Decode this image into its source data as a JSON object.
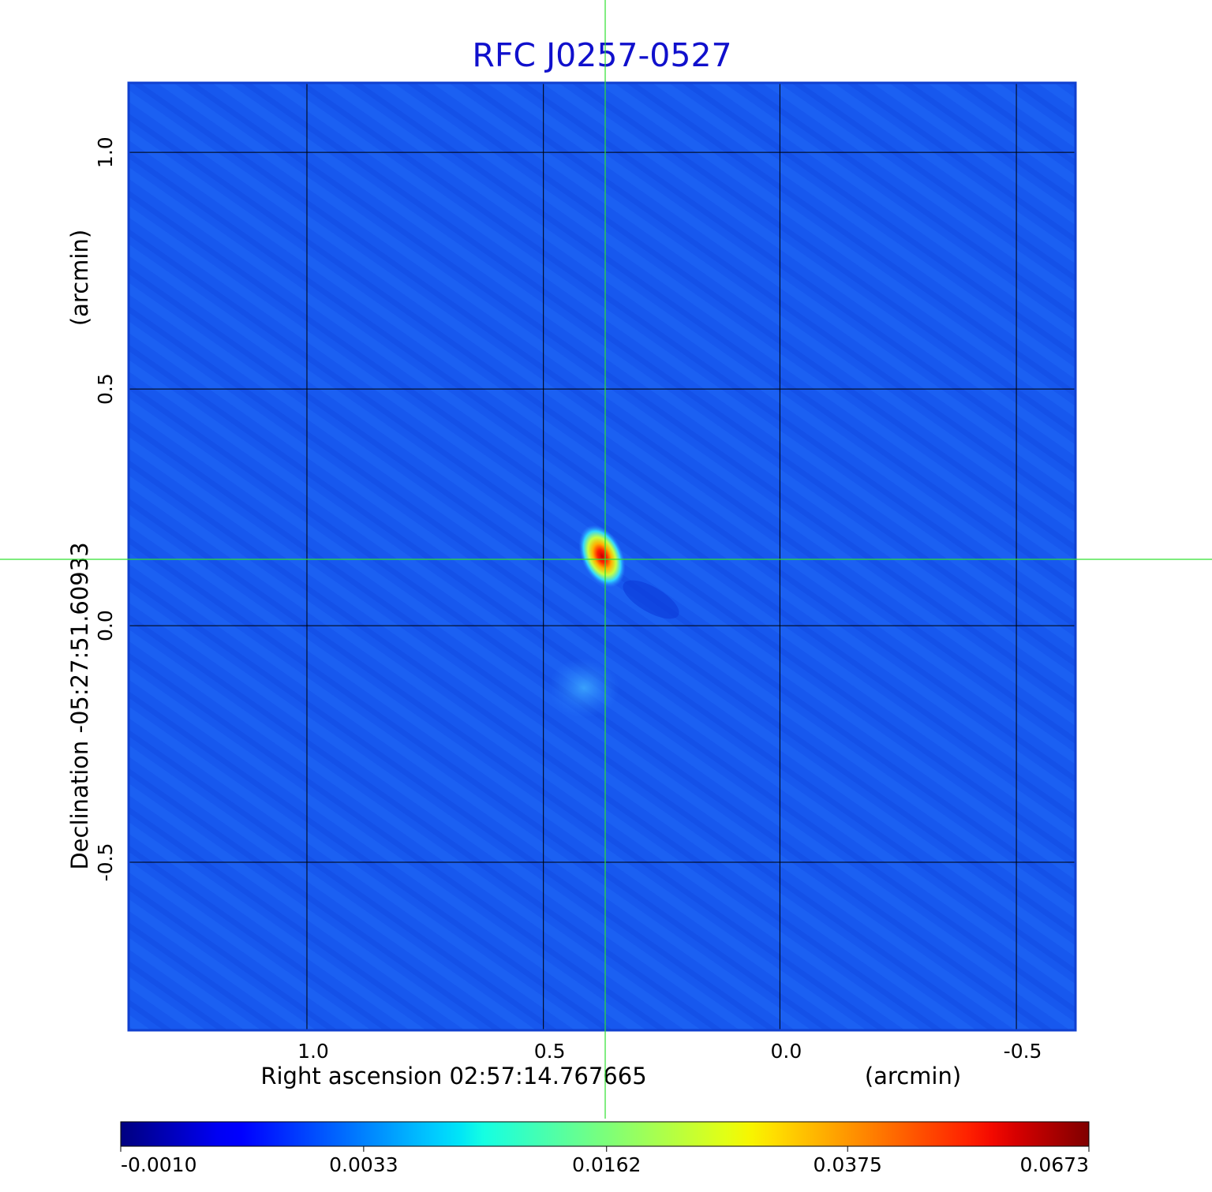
{
  "chart_data": {
    "type": "image",
    "title": "RFC J0257-0527",
    "xlabel": "Right ascension  02:57:14.767665",
    "xunit": "(arcmin)",
    "ylabel": "Declination  -05:27:51.60933",
    "yunit": "(arcmin)",
    "xlim": [
      1.377,
      -0.625
    ],
    "ylim": [
      -0.855,
      1.147
    ],
    "xticks": [
      {
        "value": 1,
        "label": "1.0"
      },
      0.5,
      {
        "value": 0,
        "label": "0.0"
      },
      -0.5
    ],
    "yticks": [
      -0.5,
      {
        "value": 0,
        "label": "0.0"
      },
      0.5,
      {
        "value": 1,
        "label": "1.0"
      }
    ],
    "grid": true,
    "colormap": "jet",
    "colorbar_scale": "sqrt",
    "clim": [
      -0.001,
      0.0673
    ],
    "colorbar_ticks": [
      {
        "value": -0.001,
        "label": "-0.0010"
      },
      {
        "value": 0.0033,
        "label": "0.0033"
      },
      {
        "value": 0.0162,
        "label": "0.0162"
      },
      {
        "value": 0.0375,
        "label": "0.0375"
      },
      {
        "value": 0.0673,
        "label": "0.0673"
      }
    ]
  }
}
